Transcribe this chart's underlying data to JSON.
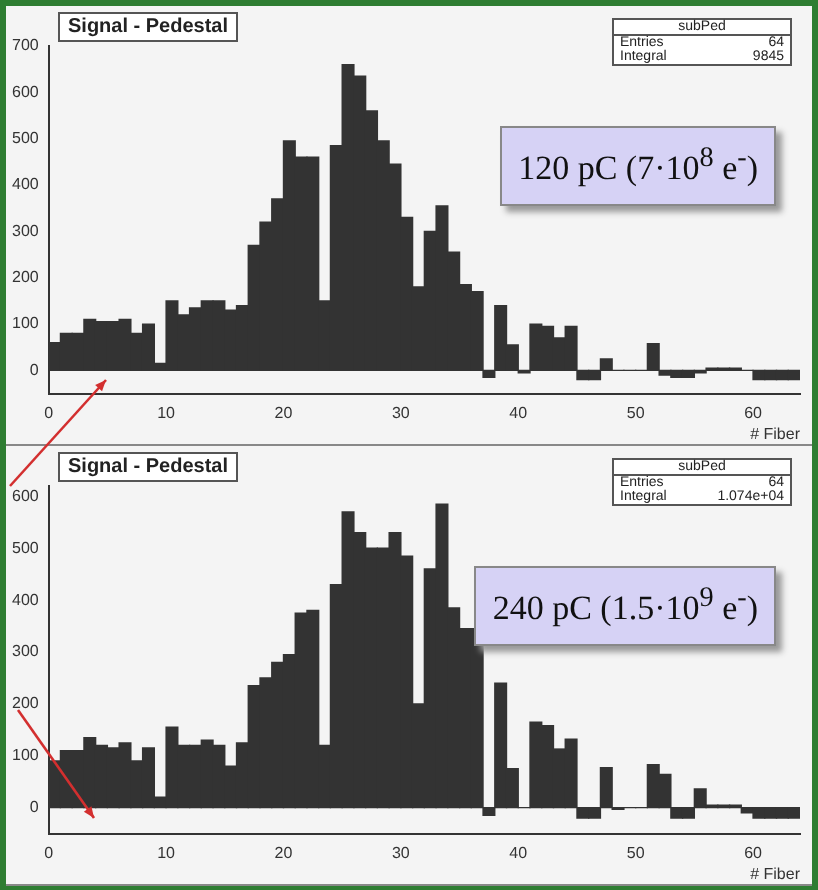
{
  "chart_data": [
    {
      "type": "histogram",
      "title": "Signal - Pedestal",
      "xlabel": "# Fiber",
      "bins": [
        0,
        1,
        2,
        3,
        4,
        5,
        6,
        7,
        8,
        9,
        10,
        11,
        12,
        13,
        14,
        15,
        16,
        17,
        18,
        19,
        20,
        21,
        22,
        23,
        24,
        25,
        26,
        27,
        28,
        29,
        30,
        31,
        32,
        33,
        34,
        35,
        36,
        37,
        38,
        39,
        40,
        41,
        42,
        43,
        44,
        45,
        46,
        47,
        48,
        49,
        50,
        51,
        52,
        53,
        54,
        55,
        56,
        57,
        58,
        59,
        60,
        61,
        62,
        63,
        64
      ],
      "values": [
        60,
        80,
        80,
        110,
        105,
        105,
        110,
        80,
        100,
        15,
        150,
        120,
        135,
        150,
        150,
        130,
        140,
        270,
        320,
        370,
        495,
        460,
        460,
        150,
        485,
        660,
        635,
        560,
        495,
        445,
        330,
        180,
        300,
        355,
        255,
        185,
        170,
        -15,
        140,
        55,
        -5,
        100,
        95,
        70,
        95,
        -20,
        -20,
        25,
        0,
        0,
        0,
        58,
        -10,
        -15,
        -15,
        -5,
        5,
        5,
        5,
        0,
        -20,
        -20,
        -20,
        -20
      ],
      "color": "#333333",
      "xlim": [
        0,
        64
      ],
      "xticks": [
        0,
        10,
        20,
        30,
        40,
        50,
        60
      ],
      "ylim": [
        -50,
        700
      ],
      "yticks": [
        0,
        100,
        200,
        300,
        400,
        500,
        600,
        700
      ],
      "annotations": [
        "subPed",
        "Entries",
        "64",
        "Integral",
        "9845",
        "120 pC (7·10$^{8}$ e$^{-}$)"
      ]
    },
    {
      "type": "histogram",
      "title": "Signal - Pedestal",
      "xlabel": "# Fiber",
      "bins": [
        0,
        1,
        2,
        3,
        4,
        5,
        6,
        7,
        8,
        9,
        10,
        11,
        12,
        13,
        14,
        15,
        16,
        17,
        18,
        19,
        20,
        21,
        22,
        23,
        24,
        25,
        26,
        27,
        28,
        29,
        30,
        31,
        32,
        33,
        34,
        35,
        36,
        37,
        38,
        39,
        40,
        41,
        42,
        43,
        44,
        45,
        46,
        47,
        48,
        49,
        50,
        51,
        52,
        53,
        54,
        55,
        56,
        57,
        58,
        59,
        60,
        61,
        62,
        63,
        64
      ],
      "values": [
        90,
        110,
        110,
        135,
        120,
        115,
        125,
        90,
        115,
        20,
        155,
        120,
        120,
        130,
        120,
        80,
        125,
        235,
        250,
        280,
        295,
        375,
        380,
        120,
        430,
        570,
        530,
        500,
        500,
        530,
        485,
        200,
        460,
        585,
        385,
        345,
        345,
        -15,
        240,
        75,
        0,
        165,
        158,
        113,
        132,
        -20,
        -20,
        77,
        -3,
        0,
        0,
        83,
        64,
        -20,
        -20,
        36,
        5,
        5,
        5,
        -10,
        -20,
        -20,
        -20,
        -20
      ],
      "color": "#333333",
      "xlim": [
        0,
        64
      ],
      "xticks": [
        0,
        10,
        20,
        30,
        40,
        50,
        60
      ],
      "ylim": [
        -50,
        620
      ],
      "yticks": [
        0,
        100,
        200,
        300,
        400,
        500,
        600
      ],
      "annotations": [
        "subPed",
        "Entries",
        "64",
        "Integral",
        "1.074e+04",
        "240 pC (1.5·10$^{9}$ e$^{-}$)"
      ]
    }
  ]
}
